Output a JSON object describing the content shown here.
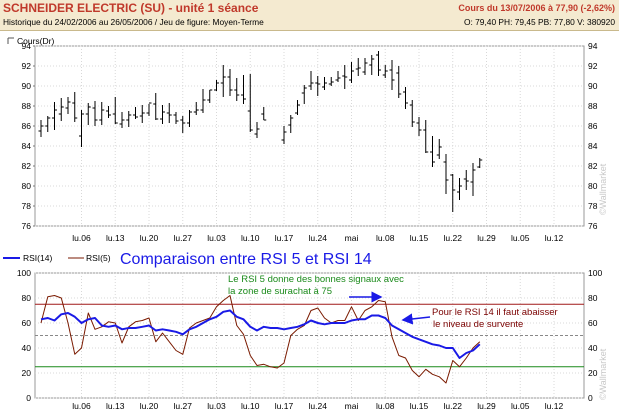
{
  "header": {
    "title": "SCHNEIDER ELECTRIC (SU) - unité 1 séance",
    "subtitle": "Historique du 24/02/2006 au 26/05/2006 / Jeu de figure: Moyen-Terme",
    "quote": "Cours du 13/07/2006 à 77,90 (-2,62%)",
    "ohlcv": "O: 79,40 PH: 79,45 PB: 77,80 V: 380920",
    "title_color": "#c0392b"
  },
  "watermark": "©Wallmarket",
  "chart_data": [
    {
      "type": "ohlc",
      "legend": "Cours(Dr)",
      "x": [
        "24/02",
        "27/02",
        "28/02",
        "01/03",
        "02/03",
        "03/03",
        "06/03",
        "07/03",
        "08/03",
        "09/03",
        "10/03",
        "13/03",
        "14/03",
        "15/03",
        "16/03",
        "17/03",
        "20/03",
        "21/03",
        "22/03",
        "23/03",
        "24/03",
        "27/03",
        "28/03",
        "29/03",
        "30/03",
        "31/03",
        "03/04",
        "04/04",
        "05/04",
        "06/04",
        "07/04",
        "10/04",
        "11/04",
        "12/04",
        "13/04",
        "14/04",
        "17/04",
        "18/04",
        "19/04",
        "20/04",
        "21/04",
        "24/04",
        "25/04",
        "26/04",
        "27/04",
        "28/04",
        "01/05",
        "02/05",
        "03/05",
        "04/05",
        "05/05",
        "08/05",
        "09/05",
        "10/05",
        "11/05",
        "12/05",
        "15/05",
        "16/05",
        "17/05",
        "18/05",
        "19/05",
        "22/05",
        "23/05",
        "24/05",
        "25/05",
        "26/05"
      ],
      "open": [
        85.5,
        86.0,
        86.8,
        87.2,
        87.8,
        88.3,
        85.0,
        87.2,
        87.8,
        86.6,
        87.5,
        87.2,
        86.2,
        86.6,
        87.1,
        87.0,
        87.3,
        88.2,
        86.7,
        87.3,
        87.1,
        86.6,
        86.3,
        87.4,
        87.6,
        88.6,
        89.6,
        90.3,
        90.9,
        89.6,
        89.1,
        87.5,
        85.2,
        87.2,
        null,
        null,
        84.6,
        86.1,
        87.3,
        89.3,
        90.0,
        90.3,
        89.9,
        90.2,
        90.6,
        91.0,
        90.6,
        91.7,
        91.4,
        92.1,
        93.1,
        91.1,
        91.6,
        91.3,
        89.4,
        88.1,
        86.3,
        85.6,
        83.4,
        83.1,
        82.4,
        81.1,
        79.4,
        80.7,
        80.4,
        81.9
      ],
      "high": [
        86.6,
        87.0,
        88.4,
        88.8,
        88.9,
        89.4,
        87.6,
        88.3,
        88.5,
        88.4,
        88.0,
        88.9,
        87.4,
        87.5,
        87.9,
        88.1,
        88.2,
        89.3,
        88.1,
        88.3,
        87.4,
        87.0,
        87.6,
        88.4,
        89.7,
        89.6,
        90.6,
        92.1,
        91.7,
        90.8,
        91.1,
        91.2,
        86.4,
        87.9,
        null,
        null,
        86.0,
        87.1,
        88.6,
        90.1,
        91.5,
        91.0,
        90.9,
        90.9,
        91.5,
        92.1,
        92.4,
        92.8,
        92.8,
        93.1,
        93.5,
        92.1,
        92.6,
        92.0,
        89.9,
        88.6,
        86.9,
        86.6,
        85.0,
        84.7,
        83.2,
        81.2,
        80.8,
        81.6,
        82.3,
        82.8
      ],
      "low": [
        84.9,
        85.4,
        85.6,
        86.5,
        87.2,
        86.4,
        83.9,
        86.1,
        86.0,
        86.1,
        86.8,
        86.2,
        85.8,
        85.9,
        86.7,
        86.3,
        87.0,
        86.6,
        86.2,
        86.3,
        86.2,
        85.3,
        85.9,
        87.1,
        87.3,
        88.3,
        89.5,
        88.9,
        89.0,
        88.5,
        88.2,
        85.4,
        84.8,
        86.6,
        null,
        null,
        84.2,
        85.3,
        87.1,
        88.2,
        89.6,
        89.0,
        89.6,
        90.0,
        90.4,
        89.7,
        90.3,
        91.0,
        91.1,
        91.1,
        91.0,
        90.8,
        89.6,
        88.8,
        87.7,
        85.9,
        85.0,
        83.3,
        81.9,
        82.7,
        79.2,
        77.4,
        78.6,
        79.6,
        79.0,
        81.8
      ],
      "close": [
        86.0,
        86.8,
        87.6,
        87.9,
        88.4,
        86.8,
        87.2,
        87.9,
        86.6,
        87.6,
        87.1,
        86.3,
        86.6,
        87.1,
        86.9,
        87.3,
        88.3,
        86.7,
        87.4,
        87.1,
        86.5,
        86.3,
        87.4,
        87.6,
        88.6,
        89.6,
        90.3,
        90.9,
        89.6,
        89.1,
        88.7,
        85.6,
        85.7,
        86.6,
        null,
        null,
        85.4,
        86.8,
        88.1,
        89.8,
        90.3,
        90.2,
        90.3,
        90.4,
        90.8,
        90.9,
        91.5,
        91.8,
        92.3,
        92.7,
        91.6,
        91.5,
        90.6,
        89.2,
        88.3,
        86.4,
        85.6,
        83.4,
        82.4,
        83.9,
        80.6,
        79.6,
        80.0,
        80.5,
        81.6,
        82.6
      ],
      "y_range": [
        76,
        94
      ],
      "y_ticks": [
        76,
        78,
        80,
        82,
        84,
        86,
        88,
        90,
        92,
        94
      ],
      "x_tick_labels": [
        "lu.06",
        "lu.13",
        "lu.20",
        "lu.27",
        "lu.03",
        "lu.10",
        "lu.17",
        "lu.24",
        "mai",
        "lu.08",
        "lu.15",
        "lu.22",
        "lu.29",
        "lu.05",
        "lu.12"
      ],
      "grid": true
    },
    {
      "type": "line",
      "series": [
        {
          "name": "RSI(14)",
          "color": "#1a1ae6",
          "values": [
            63,
            64,
            62,
            67,
            68,
            65,
            60,
            63,
            64,
            58,
            57,
            58,
            55,
            56,
            56,
            57,
            58,
            54,
            55,
            54,
            53,
            51,
            55,
            57,
            60,
            63,
            65,
            69,
            70,
            65,
            63,
            57,
            54,
            57,
            56,
            56,
            55,
            56,
            57,
            59,
            62,
            60,
            59,
            60,
            60,
            60,
            62,
            63,
            63,
            66,
            66,
            64,
            58,
            55,
            52,
            49,
            47,
            45,
            43,
            42,
            40,
            40,
            32,
            36,
            38,
            43
          ]
        },
        {
          "name": "RSI(5)",
          "color": "#7a1a00",
          "values": [
            60,
            81,
            82,
            80,
            60,
            35,
            40,
            68,
            55,
            57,
            61,
            60,
            44,
            57,
            61,
            62,
            64,
            45,
            52,
            45,
            38,
            35,
            56,
            60,
            62,
            64,
            73,
            78,
            82,
            58,
            51,
            34,
            26,
            27,
            25,
            24,
            28,
            50,
            55,
            58,
            70,
            72,
            64,
            60,
            62,
            62,
            73,
            62,
            70,
            73,
            78,
            77,
            49,
            34,
            32,
            22,
            17,
            23,
            19,
            17,
            12,
            30,
            25,
            32,
            40,
            45
          ]
        }
      ],
      "y_range": [
        0,
        100
      ],
      "y_ticks": [
        0,
        20,
        40,
        60,
        80,
        100
      ],
      "overbought": 75,
      "oversold": 25,
      "x_tick_labels": [
        "lu.06",
        "lu.13",
        "lu.20",
        "lu.27",
        "lu.03",
        "lu.10",
        "lu.17",
        "lu.24",
        "mai",
        "lu.08",
        "lu.15",
        "lu.22",
        "lu.29",
        "lu.05",
        "lu.12"
      ],
      "title": "Comparaison entre RSI 5 et RSI 14",
      "annotations": [
        {
          "line1": "Le RSI 5 donne des bonnes signaux avec",
          "line2": "la zone de surachat à 75",
          "color": "#1a8a1a"
        },
        {
          "line1": "Pour le RSI 14 il faut abaisser",
          "line2": "le niveau de survente",
          "color": "#7a0000"
        }
      ]
    }
  ]
}
